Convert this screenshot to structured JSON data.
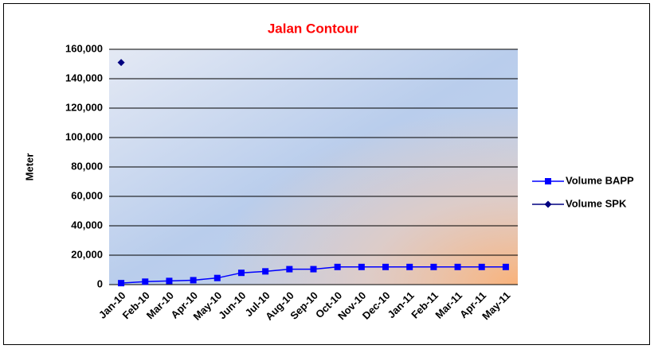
{
  "chart_data": {
    "type": "line",
    "title": "Jalan Contour",
    "title_color": "#ff0000",
    "y_label": "Meter",
    "categories": [
      "Jan-10",
      "Feb-10",
      "Mar-10",
      "Apr-10",
      "May-10",
      "Jun-10",
      "Jul-10",
      "Aug-10",
      "Sep-10",
      "Oct-10",
      "Nov-10",
      "Dec-10",
      "Jan-11",
      "Feb-11",
      "Mar-11",
      "Apr-11",
      "May-11"
    ],
    "series": [
      {
        "name": "Volume BAPP",
        "color": "#0000ff",
        "marker": "square",
        "values": [
          1000,
          2000,
          2500,
          3000,
          4500,
          8000,
          9000,
          10500,
          10500,
          12000,
          12000,
          12000,
          12000,
          12000,
          12000,
          12000,
          12000
        ]
      },
      {
        "name": "Volume SPK",
        "color": "#000080",
        "marker": "diamond",
        "values": [
          151000,
          null,
          null,
          null,
          null,
          null,
          null,
          null,
          null,
          null,
          null,
          null,
          null,
          null,
          null,
          null,
          null
        ]
      }
    ],
    "ylim": [
      0,
      160000
    ],
    "yticks": [
      0,
      {
        "value": 20000,
        "label": "20,000"
      },
      {
        "value": 40000,
        "label": "40,000"
      },
      {
        "value": 60000,
        "label": "60,000"
      },
      {
        "value": 80000,
        "label": "80,000"
      },
      {
        "value": 100000,
        "label": "100,000"
      },
      {
        "value": 120000,
        "label": "120,000"
      },
      {
        "value": 140000,
        "label": "140,000"
      },
      {
        "value": 160000,
        "label": "160,000"
      }
    ],
    "grid": true,
    "legend": "right"
  }
}
